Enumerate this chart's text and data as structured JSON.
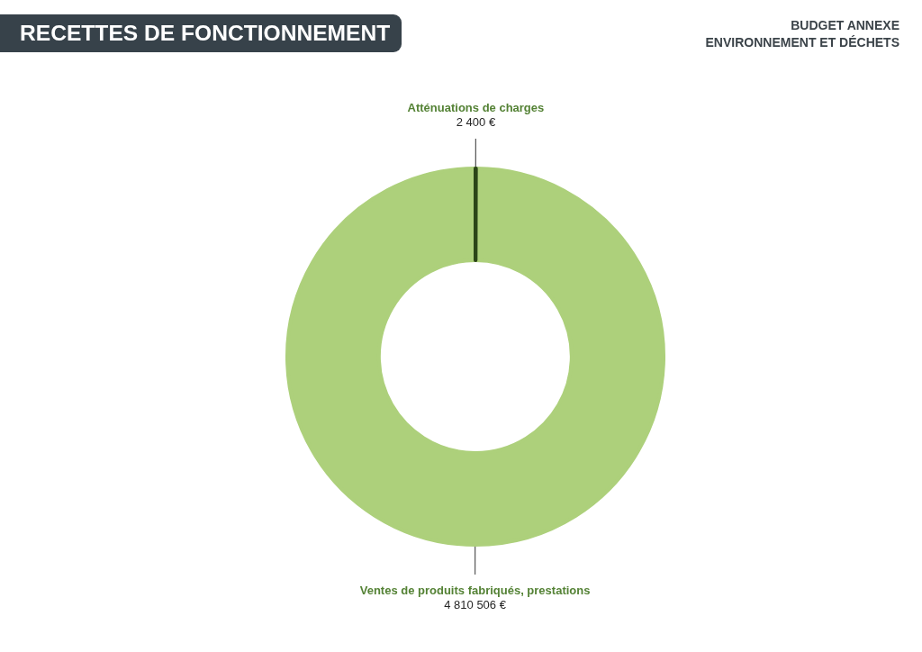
{
  "chart_data": {
    "type": "donut",
    "title": "RECETTES DE FONCTIONNEMENT",
    "subtitle": "BUDGET ANNEXE\nENVIRONNEMENT ET DÉCHETS",
    "categories": [
      "Atténuations de charges",
      "Ventes de produits fabriqués, prestations"
    ],
    "values": [
      2400,
      4810506
    ],
    "colors": [
      "#2b4518",
      "#add07b"
    ],
    "value_labels": [
      "2 400 €",
      "4 810 506 €"
    ]
  }
}
